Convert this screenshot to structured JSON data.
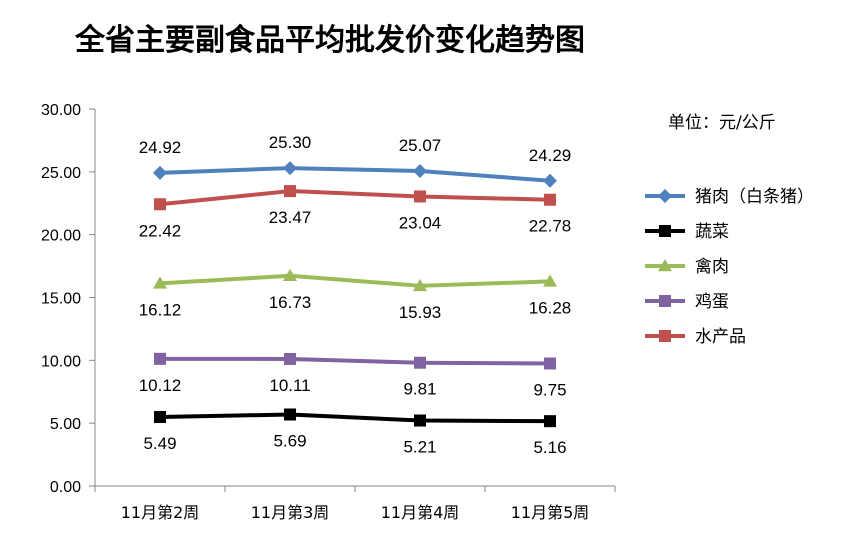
{
  "chart_data": {
    "type": "line",
    "title": "全省主要副食品平均批发价变化趋势图",
    "unit_label": "单位：元/公斤",
    "xlabel": "",
    "ylabel": "",
    "categories": [
      "11月第2周",
      "11月第3周",
      "11月第4周",
      "11月第5周"
    ],
    "ylim": [
      0,
      30
    ],
    "yticks": [
      "0.00",
      "5.00",
      "10.00",
      "15.00",
      "20.00",
      "25.00",
      "30.00"
    ],
    "grid": false,
    "legend_position": "right",
    "series": [
      {
        "name": "猪肉（白条猪）",
        "color": "#4F81BD",
        "marker": "diamond",
        "label_position": "above",
        "values": [
          24.92,
          25.3,
          25.07,
          24.29
        ],
        "labels": [
          "24.92",
          "25.30",
          "25.07",
          "24.29"
        ]
      },
      {
        "name": "蔬菜",
        "color": "#000000",
        "marker": "square",
        "label_position": "below",
        "values": [
          5.49,
          5.69,
          5.21,
          5.16
        ],
        "labels": [
          "5.49",
          "5.69",
          "5.21",
          "5.16"
        ]
      },
      {
        "name": "禽肉",
        "color": "#9BBB59",
        "marker": "triangle",
        "label_position": "below",
        "values": [
          16.12,
          16.73,
          15.93,
          16.28
        ],
        "labels": [
          "16.12",
          "16.73",
          "15.93",
          "16.28"
        ]
      },
      {
        "name": "鸡蛋",
        "color": "#8064A2",
        "marker": "square",
        "label_position": "below",
        "values": [
          10.12,
          10.11,
          9.81,
          9.75
        ],
        "labels": [
          "10.12",
          "10.11",
          "9.81",
          "9.75"
        ]
      },
      {
        "name": "水产品",
        "color": "#C0504D",
        "marker": "square",
        "label_position": "below",
        "values": [
          22.42,
          23.47,
          23.04,
          22.78
        ],
        "labels": [
          "22.42",
          "23.47",
          "23.04",
          "22.78"
        ]
      }
    ]
  }
}
